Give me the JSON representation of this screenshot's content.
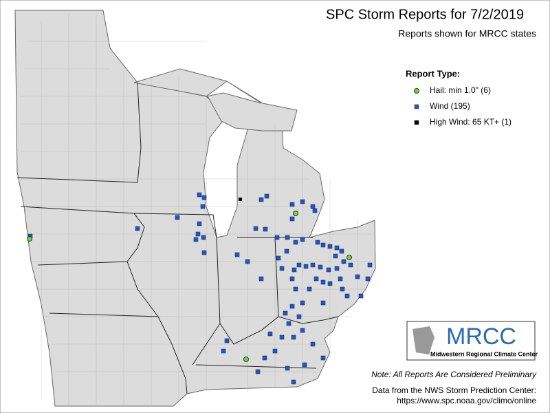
{
  "header": {
    "title": "SPC Storm Reports for 7/2/2019",
    "subtitle": "Reports shown for MRCC states"
  },
  "legend": {
    "title": "Report Type:",
    "items": [
      {
        "label": "Hail: min 1.0\" (6)",
        "color": "#66dd33"
      },
      {
        "label": "Wind (195)",
        "color": "#2255cc"
      },
      {
        "label": "High Wind: 65 KT+ (1)",
        "color": "#000000"
      }
    ]
  },
  "logo": {
    "name": "MRCC",
    "caption": "Midwestern Regional Climate Center"
  },
  "note": "Note: All Reports Are Considered Preliminary",
  "source": {
    "line1": "Data from the NWS Storm Prediction Center:",
    "line2": "https://www.spc.noaa.gov/climo/online"
  }
}
